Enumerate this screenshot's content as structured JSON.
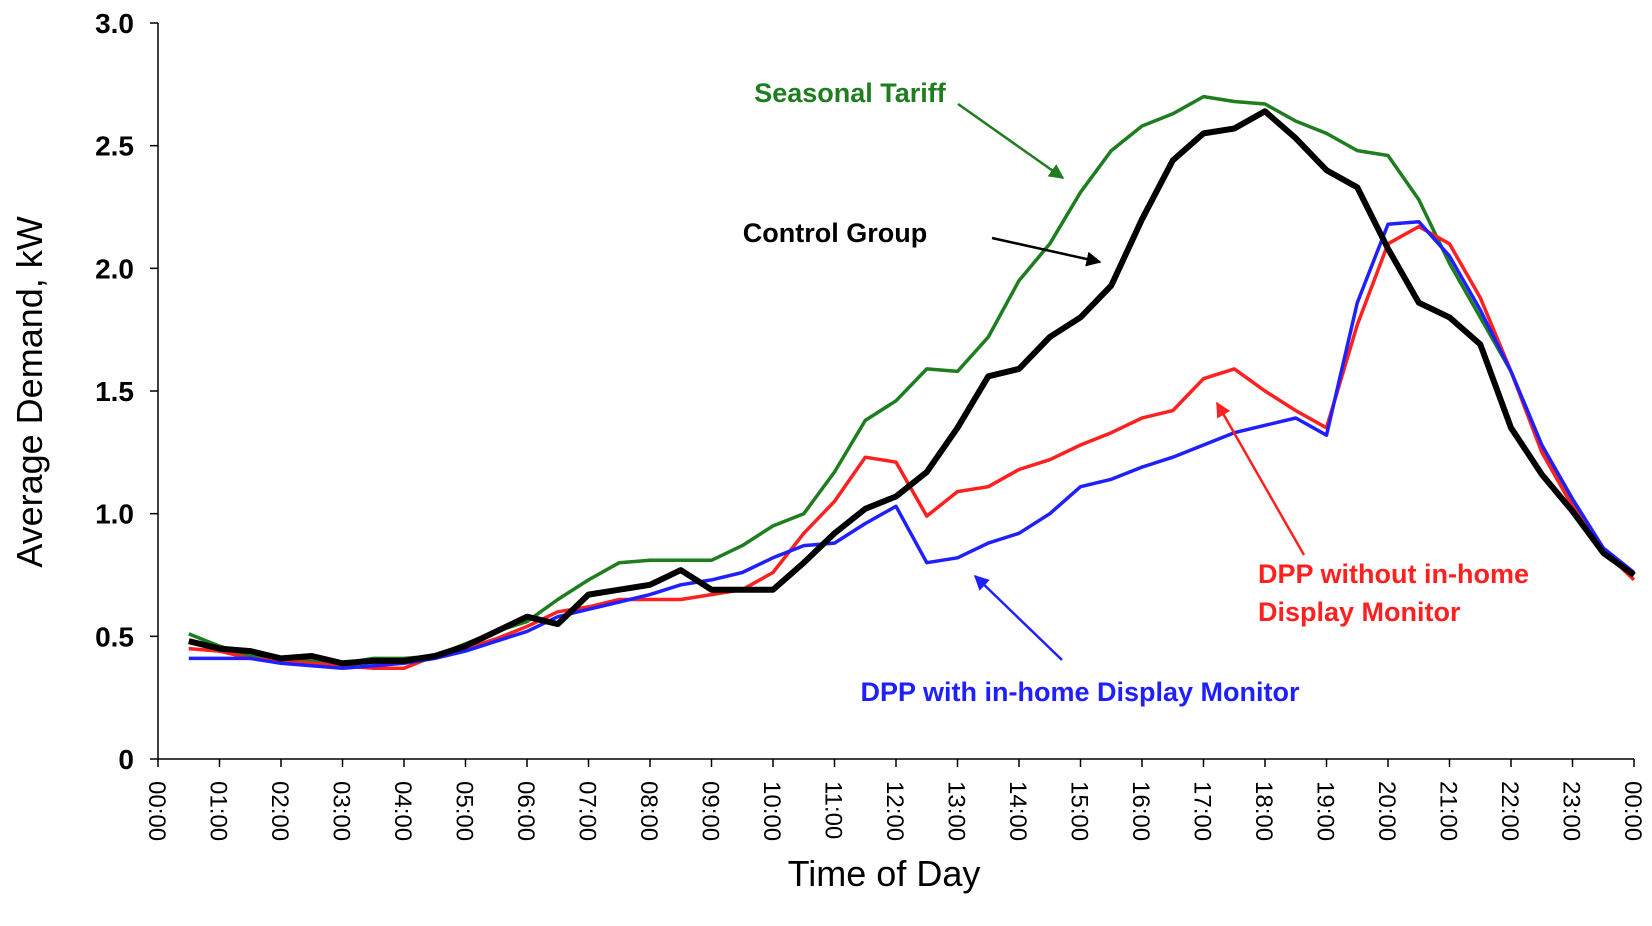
{
  "chart_data": {
    "type": "line",
    "x_label": "Time of Day",
    "y_label": "Average Demand, kW",
    "x": [
      0.5,
      1,
      1.5,
      2,
      2.5,
      3,
      3.5,
      4,
      4.5,
      5,
      5.5,
      6,
      6.5,
      7,
      7.5,
      8,
      8.5,
      9,
      9.5,
      10,
      10.5,
      11,
      11.5,
      12,
      12.5,
      13,
      13.5,
      14,
      14.5,
      15,
      15.5,
      16,
      16.5,
      17,
      17.5,
      18,
      18.5,
      19,
      19.5,
      20,
      20.5,
      21,
      21.5,
      22,
      22.5,
      23,
      23.5,
      24
    ],
    "xlim": [
      0,
      24
    ],
    "xticks": [
      {
        "value": 0,
        "label": "00:00"
      },
      {
        "value": 1,
        "label": "01:00"
      },
      {
        "value": 2,
        "label": "02:00"
      },
      {
        "value": 3,
        "label": "03:00"
      },
      {
        "value": 4,
        "label": "04:00"
      },
      {
        "value": 5,
        "label": "05:00"
      },
      {
        "value": 6,
        "label": "06:00"
      },
      {
        "value": 7,
        "label": "07:00"
      },
      {
        "value": 8,
        "label": "08:00"
      },
      {
        "value": 9,
        "label": "09:00"
      },
      {
        "value": 10,
        "label": "10:00"
      },
      {
        "value": 11,
        "label": "11:00"
      },
      {
        "value": 12,
        "label": "12:00"
      },
      {
        "value": 13,
        "label": "13:00"
      },
      {
        "value": 14,
        "label": "14:00"
      },
      {
        "value": 15,
        "label": "15:00"
      },
      {
        "value": 16,
        "label": "16:00"
      },
      {
        "value": 17,
        "label": "17:00"
      },
      {
        "value": 18,
        "label": "18:00"
      },
      {
        "value": 19,
        "label": "19:00"
      },
      {
        "value": 20,
        "label": "20:00"
      },
      {
        "value": 21,
        "label": "21:00"
      },
      {
        "value": 22,
        "label": "22:00"
      },
      {
        "value": 23,
        "label": "23:00"
      },
      {
        "value": 24,
        "label": "00:00"
      }
    ],
    "ylim": [
      0,
      3
    ],
    "yticks": [
      0,
      0.5,
      {
        "value": 1,
        "label": "1.0"
      },
      1.5,
      {
        "value": 2,
        "label": "2.0"
      },
      2.5,
      {
        "value": 3,
        "label": "3.0"
      }
    ],
    "series": [
      {
        "name": "Seasonal Tariff",
        "color": "#1e7d1e",
        "values": [
          0.51,
          0.46,
          0.42,
          0.41,
          0.4,
          0.39,
          0.41,
          0.41,
          0.42,
          0.47,
          0.52,
          0.56,
          0.65,
          0.73,
          0.8,
          0.81,
          0.81,
          0.81,
          0.87,
          0.95,
          1.0,
          1.17,
          1.38,
          1.46,
          1.59,
          1.58,
          1.72,
          1.95,
          2.1,
          2.31,
          2.48,
          2.58,
          2.63,
          2.7,
          2.68,
          2.67,
          2.6,
          2.55,
          2.48,
          2.46,
          2.28,
          2.02,
          1.8,
          1.58,
          1.28,
          1.05,
          0.84,
          0.75
        ]
      },
      {
        "name": "Control Group",
        "color": "#000000",
        "values": [
          0.48,
          0.45,
          0.44,
          0.41,
          0.42,
          0.39,
          0.4,
          0.4,
          0.42,
          0.46,
          0.52,
          0.58,
          0.55,
          0.67,
          0.69,
          0.71,
          0.77,
          0.69,
          0.69,
          0.69,
          0.8,
          0.92,
          1.02,
          1.07,
          1.17,
          1.35,
          1.56,
          1.59,
          1.72,
          1.8,
          1.93,
          2.2,
          2.44,
          2.55,
          2.57,
          2.64,
          2.53,
          2.4,
          2.33,
          2.08,
          1.86,
          1.8,
          1.69,
          1.35,
          1.16,
          1.01,
          0.84,
          0.75
        ]
      },
      {
        "name": "DPP without in-home Display Monitor",
        "color": "#ff2020",
        "values": [
          0.45,
          0.44,
          0.41,
          0.4,
          0.39,
          0.38,
          0.37,
          0.37,
          0.42,
          0.45,
          0.49,
          0.54,
          0.6,
          0.62,
          0.65,
          0.65,
          0.65,
          0.67,
          0.69,
          0.76,
          0.92,
          1.05,
          1.23,
          1.21,
          0.99,
          1.09,
          1.11,
          1.18,
          1.22,
          1.28,
          1.33,
          1.39,
          1.42,
          1.55,
          1.59,
          1.5,
          1.42,
          1.35,
          1.77,
          2.1,
          2.17,
          2.1,
          1.88,
          1.58,
          1.25,
          1.03,
          0.85,
          0.73
        ]
      },
      {
        "name": "DPP with in-home Display Monitor",
        "color": "#2020ff",
        "values": [
          0.41,
          0.41,
          0.41,
          0.39,
          0.38,
          0.37,
          0.38,
          0.39,
          0.41,
          0.44,
          0.48,
          0.52,
          0.58,
          0.61,
          0.64,
          0.67,
          0.71,
          0.73,
          0.76,
          0.82,
          0.87,
          0.88,
          0.96,
          1.03,
          0.8,
          0.82,
          0.88,
          0.92,
          1.0,
          1.11,
          1.14,
          1.19,
          1.23,
          1.28,
          1.33,
          1.36,
          1.39,
          1.32,
          1.86,
          2.18,
          2.19,
          2.05,
          1.83,
          1.58,
          1.28,
          1.06,
          0.86,
          0.76
        ]
      }
    ]
  }
}
